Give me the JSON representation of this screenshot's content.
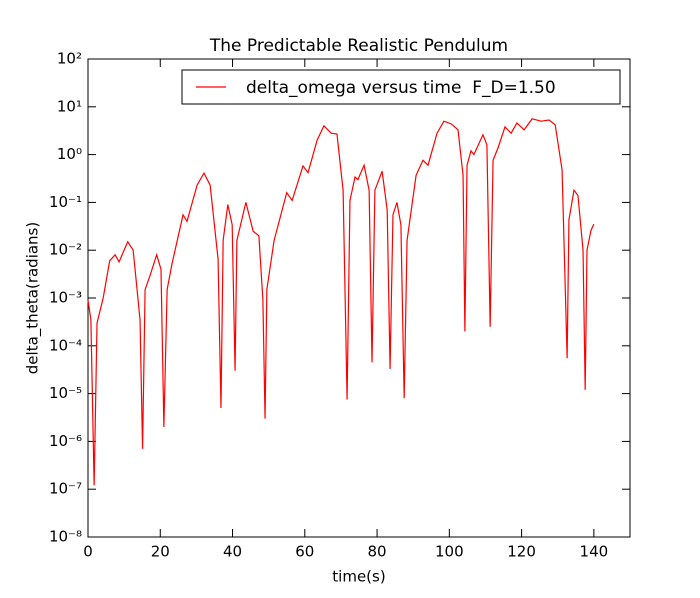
{
  "chart_data": {
    "type": "line",
    "title": "The Predictable Realistic Pendulum",
    "xlabel": "time(s)",
    "ylabel": "delta_theta(radians)",
    "x": [
      0,
      0.8,
      1.7,
      2.5,
      4.2,
      6,
      7.5,
      8.6,
      11,
      12.5,
      14.4,
      15.1,
      15.8,
      17.2,
      19,
      20.2,
      21,
      21.9,
      23.2,
      26.3,
      27.4,
      30.2,
      32.1,
      33.8,
      36,
      36.8,
      37.4,
      38.7,
      39.9,
      40.7,
      41.2,
      43.7,
      45.7,
      47.3,
      48.4,
      49,
      49.5,
      51.5,
      55,
      56.5,
      59.5,
      60.9,
      63.4,
      65.3,
      67.3,
      68.9,
      70.6,
      71.7,
      72.5,
      73.9,
      74.7,
      76.4,
      77.8,
      78.6,
      79.4,
      81.4,
      82.8,
      83.6,
      84.4,
      85.5,
      86.6,
      87.5,
      88.3,
      90.8,
      92.7,
      94.1,
      96.6,
      98.5,
      100.5,
      102.4,
      103.8,
      104.3,
      104.9,
      106,
      106.8,
      109.3,
      110.4,
      111.3,
      112.1,
      113.5,
      115.4,
      117.1,
      118.7,
      120.7,
      122.9,
      125.4,
      127.6,
      129.3,
      131.2,
      132.6,
      133.1,
      134.5,
      135.6,
      137,
      137.6,
      138.1,
      139.2,
      140
    ],
    "series": [
      {
        "name": "delta_omega versus time  F_D=1.50",
        "color": "#ff0000",
        "values": [
          0.0009,
          0.00035,
          1.2e-07,
          0.0003,
          0.001,
          0.006,
          0.008,
          0.0057,
          0.015,
          0.01,
          0.00035,
          7e-07,
          0.0015,
          0.003,
          0.008,
          0.004,
          2e-06,
          0.0015,
          0.005,
          0.055,
          0.04,
          0.23,
          0.41,
          0.23,
          0.0065,
          5e-06,
          0.016,
          0.09,
          0.034,
          3e-05,
          0.016,
          0.1,
          0.025,
          0.02,
          0.0009,
          3e-06,
          0.0015,
          0.016,
          0.16,
          0.11,
          0.58,
          0.42,
          2,
          4,
          2.8,
          2.7,
          0.18,
          7.5e-06,
          0.11,
          0.34,
          0.3,
          0.6,
          0.18,
          4.5e-05,
          0.18,
          0.45,
          0.07,
          3.3e-05,
          0.055,
          0.1,
          0.034,
          8e-06,
          0.016,
          0.37,
          0.76,
          0.6,
          2.8,
          5,
          4.4,
          3.3,
          0.37,
          0.0002,
          0.6,
          1.2,
          1,
          2.6,
          1.6,
          0.00025,
          0.76,
          1.4,
          3.8,
          2.8,
          4.6,
          3.3,
          5.6,
          5,
          5.3,
          4.2,
          0.48,
          5.5e-05,
          0.043,
          0.18,
          0.14,
          0.01,
          1.2e-05,
          0.01,
          0.026,
          0.035
        ]
      }
    ],
    "xlim": [
      0,
      150
    ],
    "xticks": [
      0,
      20,
      40,
      60,
      80,
      100,
      120,
      140
    ],
    "ylim": [
      1e-08,
      100
    ],
    "yscale": "log",
    "yticks": [
      {
        "value": 1e-08,
        "label": "10⁻⁸"
      },
      {
        "value": 1e-07,
        "label": "10⁻⁷"
      },
      {
        "value": 1e-06,
        "label": "10⁻⁶"
      },
      {
        "value": 1e-05,
        "label": "10⁻⁵"
      },
      {
        "value": 0.0001,
        "label": "10⁻⁴"
      },
      {
        "value": 0.001,
        "label": "10⁻³"
      },
      {
        "value": 0.01,
        "label": "10⁻²"
      },
      {
        "value": 0.1,
        "label": "10⁻¹"
      },
      {
        "value": 1,
        "label": "10⁰"
      },
      {
        "value": 10,
        "label": "10¹"
      },
      {
        "value": 100,
        "label": "10²"
      }
    ],
    "legend": "upper right"
  }
}
